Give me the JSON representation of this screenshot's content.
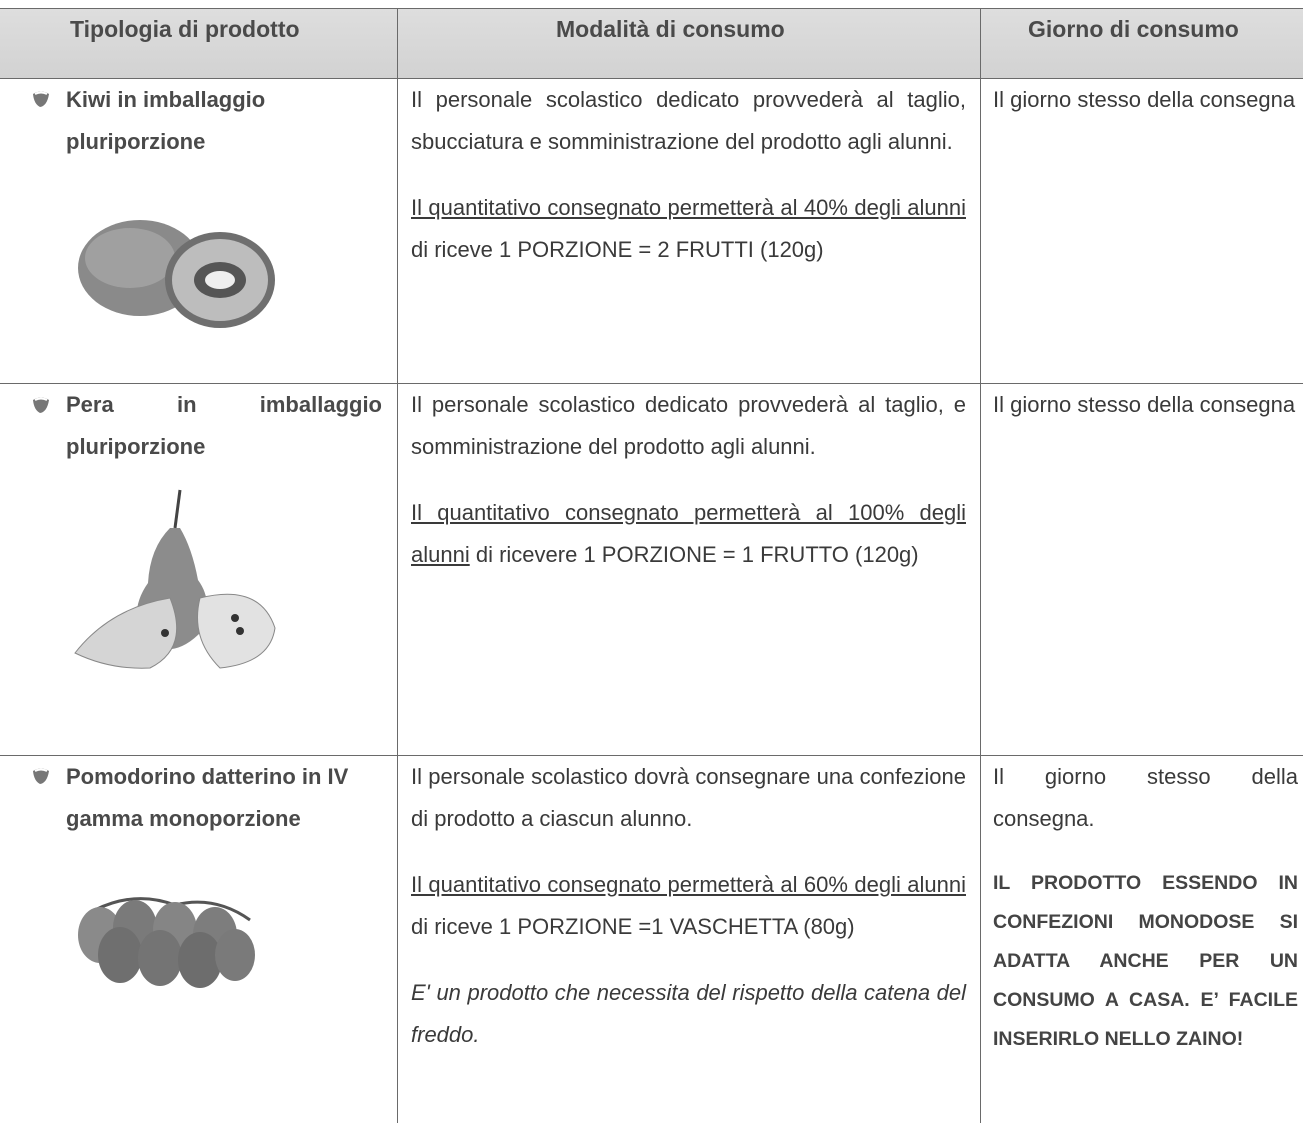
{
  "table": {
    "header": [
      "Tipologia di prodotto",
      "Modalità di consumo",
      "Giorno di consumo"
    ],
    "rows": [
      {
        "product": "Kiwi in imballaggio pluriporzione",
        "description": "Il personale scolastico dedicato provvederà al taglio, sbucciatura e somministrazione del prodotto agli alunni.",
        "quantity": {
          "underlined": "Il quantitativo consegnato permetterà al 40% degli alunni",
          "rest": "di riceve 1 PORZIONE = 2 FRUTTI (120g)"
        },
        "day": "Il giorno stesso della consegna"
      },
      {
        "product": "Pera in imballaggio pluriporzione",
        "description": "Il personale scolastico dedicato provvederà al taglio,  e somministrazione del prodotto agli alunni.",
        "quantity": {
          "underlined": "Il quantitativo consegnato permetterà al 100% degli alunni",
          "rest": "di ricevere 1 PORZIONE = 1 FRUTTO (120g)"
        },
        "day": "Il giorno stesso della consegna"
      },
      {
        "product": "Pomodorino datterino in IV gamma monoporzione",
        "description": "Il personale scolastico dovrà consegnare una confezione di prodotto a ciascun alunno.",
        "quantity": {
          "underlined": "Il quantitativo consegnato permetterà al 60% degli alunni",
          "rest": "di riceve 1 PORZIONE =1 VASCHETTA (80g)"
        },
        "note": "E' un prodotto che necessita del rispetto della catena del freddo.",
        "day": "Il giorno stesso della consegna.",
        "day_note": "IL PRODOTTO ESSENDO IN CONFEZIONI MONODOSE SI ADATTA ANCHE PER UN CONSUMO A CASA. E’ FACILE INSERIRLO NELLO ZAINO!"
      }
    ]
  }
}
